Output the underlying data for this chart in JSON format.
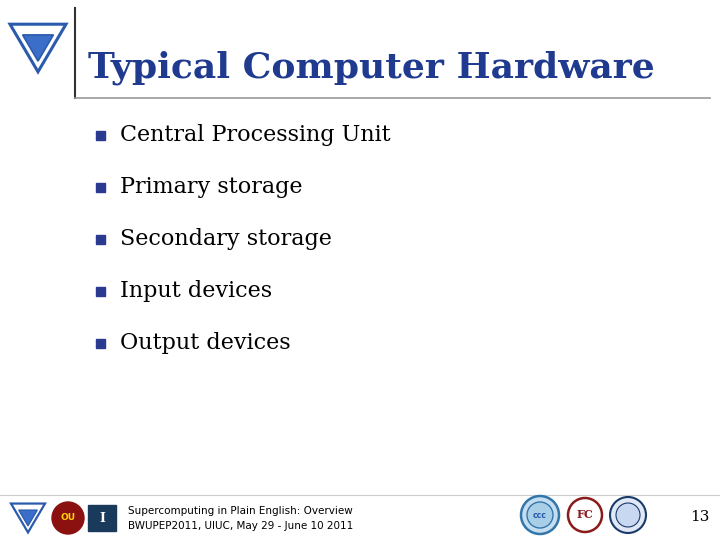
{
  "title": "Typical Computer Hardware",
  "title_color": "#1F3A8F",
  "title_fontsize": 26,
  "bullet_items": [
    "Central Processing Unit",
    "Primary storage",
    "Secondary storage",
    "Input devices",
    "Output devices"
  ],
  "bullet_text_color": "#000000",
  "bullet_fontsize": 16,
  "bullet_marker_color": "#2B3990",
  "background_color": "#FFFFFF",
  "footer_line1": "Supercomputing in Plain English: Overview",
  "footer_line2": "BWUPEP2011, UIUC, May 29 - June 10 2011",
  "footer_fontsize": 7.5,
  "page_number": "13",
  "separator_color": "#999999",
  "left_icon_color": "#2B5BAD",
  "left_icon_fill": "#3A6EC8"
}
